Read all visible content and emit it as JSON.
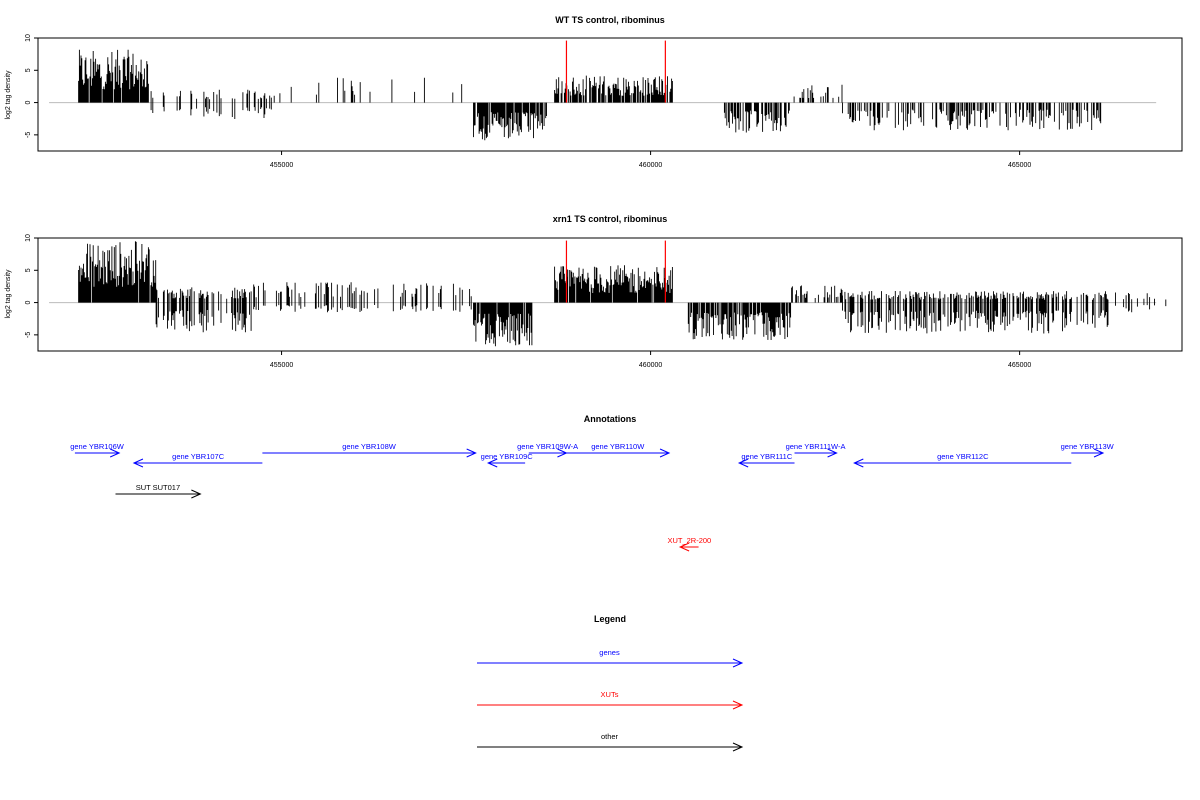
{
  "chart_data": [
    {
      "type": "bar",
      "title": "WT TS control, ribominus",
      "ylabel": "log2 tag density",
      "xlim": [
        451700,
        467200
      ],
      "ylim": [
        -7.5,
        10
      ],
      "yticks": [
        -5,
        0,
        5,
        10
      ],
      "xticks": [
        455000,
        460000,
        465000
      ],
      "xtick_labels": [
        "455000",
        "460000",
        "465000"
      ],
      "highlight_x": [
        458860,
        460200
      ],
      "highlight_value": 9.6,
      "segments": [
        {
          "x0": 452250,
          "x1": 453200,
          "plus_max": 8.2,
          "minus_max": 0,
          "density": 0.9
        },
        {
          "x0": 453200,
          "x1": 454900,
          "plus_max": 2.0,
          "minus_max": 2.6,
          "density": 0.25
        },
        {
          "x0": 454900,
          "x1": 457600,
          "plus_max": 4.0,
          "minus_max": 0,
          "density": 0.08
        },
        {
          "x0": 457600,
          "x1": 458600,
          "plus_max": 0,
          "minus_max": 6.0,
          "density": 0.85
        },
        {
          "x0": 458700,
          "x1": 460300,
          "plus_max": 4.2,
          "minus_max": 0,
          "density": 0.75
        },
        {
          "x0": 461000,
          "x1": 461900,
          "plus_max": 0,
          "minus_max": 4.8,
          "density": 0.6
        },
        {
          "x0": 461900,
          "x1": 462600,
          "plus_max": 2.8,
          "minus_max": 0,
          "density": 0.2
        },
        {
          "x0": 462600,
          "x1": 466100,
          "plus_max": 0,
          "minus_max": 4.3,
          "density": 0.4
        }
      ]
    },
    {
      "type": "bar",
      "title": "xrn1 TS control, ribominus",
      "ylabel": "log2 tag density",
      "xlim": [
        451700,
        467200
      ],
      "ylim": [
        -7.5,
        10
      ],
      "yticks": [
        -5,
        0,
        5,
        10
      ],
      "xticks": [
        455000,
        460000,
        465000
      ],
      "xtick_labels": [
        "455000",
        "460000",
        "465000"
      ],
      "highlight_x": [
        458860,
        460200
      ],
      "highlight_value": 9.6,
      "segments": [
        {
          "x0": 452250,
          "x1": 453300,
          "plus_max": 9.6,
          "minus_max": 0,
          "density": 0.95
        },
        {
          "x0": 453300,
          "x1": 454600,
          "plus_max": 2.4,
          "minus_max": 4.6,
          "density": 0.5
        },
        {
          "x0": 454600,
          "x1": 457600,
          "plus_max": 3.2,
          "minus_max": 1.5,
          "density": 0.25
        },
        {
          "x0": 457600,
          "x1": 458400,
          "plus_max": 0,
          "minus_max": 6.8,
          "density": 0.95
        },
        {
          "x0": 458700,
          "x1": 460300,
          "plus_max": 5.8,
          "minus_max": 0,
          "density": 0.95
        },
        {
          "x0": 460500,
          "x1": 461900,
          "plus_max": 0,
          "minus_max": 6.0,
          "density": 0.8
        },
        {
          "x0": 461900,
          "x1": 462600,
          "plus_max": 2.8,
          "minus_max": 0,
          "density": 0.45
        },
        {
          "x0": 462600,
          "x1": 466200,
          "plus_max": 1.8,
          "minus_max": 4.8,
          "density": 0.55
        },
        {
          "x0": 466200,
          "x1": 467000,
          "plus_max": 1.6,
          "minus_max": 1.5,
          "density": 0.15
        }
      ]
    },
    {
      "type": "diagram",
      "title": "Annotations",
      "features": [
        {
          "label": "gene YBR106W",
          "x0": 452200,
          "x1": 452800,
          "strand": "+",
          "color": "#0000ff",
          "row": 0
        },
        {
          "label": "gene YBR107C",
          "x0": 453000,
          "x1": 454740,
          "strand": "-",
          "color": "#0000ff",
          "row": 1
        },
        {
          "label": "gene YBR108W",
          "x0": 454740,
          "x1": 457630,
          "strand": "+",
          "color": "#0000ff",
          "row": 0
        },
        {
          "label": "gene YBR109C",
          "x0": 457800,
          "x1": 458300,
          "strand": "-",
          "color": "#0000ff",
          "row": 1
        },
        {
          "label": "gene YBR109W-A",
          "x0": 458350,
          "x1": 458860,
          "strand": "+",
          "color": "#0000ff",
          "row": 0
        },
        {
          "label": "gene YBR110W",
          "x0": 458860,
          "x1": 460250,
          "strand": "+",
          "color": "#0000ff",
          "row": 0
        },
        {
          "label": "gene YBR111C",
          "x0": 461200,
          "x1": 461950,
          "strand": "-",
          "color": "#0000ff",
          "row": 1
        },
        {
          "label": "gene YBR111W-A",
          "x0": 461950,
          "x1": 462520,
          "strand": "+",
          "color": "#0000ff",
          "row": 0
        },
        {
          "label": "gene YBR112C",
          "x0": 462760,
          "x1": 465700,
          "strand": "-",
          "color": "#0000ff",
          "row": 1
        },
        {
          "label": "gene YBR113W",
          "x0": 465700,
          "x1": 466130,
          "strand": "+",
          "color": "#0000ff",
          "row": 0
        },
        {
          "label": "SUT SUT017",
          "x0": 452750,
          "x1": 453900,
          "strand": "+",
          "color": "#000000",
          "row": 2
        },
        {
          "label": "XUT_2R-200",
          "x0": 460400,
          "x1": 460650,
          "strand": "-",
          "color": "#ff0000",
          "row": 3
        }
      ]
    },
    {
      "type": "legend",
      "title": "Legend",
      "entries": [
        {
          "label": "genes",
          "color": "#0000ff"
        },
        {
          "label": "XUTs",
          "color": "#ff0000"
        },
        {
          "label": "other",
          "color": "#000000"
        }
      ]
    }
  ]
}
